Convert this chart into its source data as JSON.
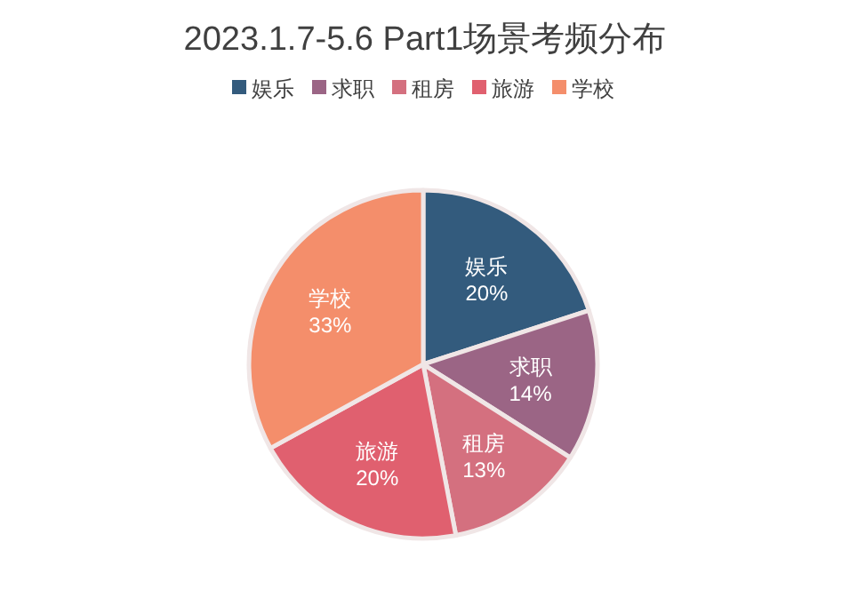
{
  "chart_data": {
    "type": "pie",
    "title": "2023.1.7-5.6 Part1场景考频分布",
    "categories": [
      "娱乐",
      "求职",
      "租房",
      "旅游",
      "学校"
    ],
    "values": [
      20,
      14,
      13,
      20,
      33
    ],
    "colors": [
      "#335b7d",
      "#9b6585",
      "#d4707f",
      "#e0606f",
      "#f48e6b"
    ],
    "value_labels": [
      "20%",
      "14%",
      "13%",
      "20%",
      "33%"
    ],
    "legend": "top"
  }
}
